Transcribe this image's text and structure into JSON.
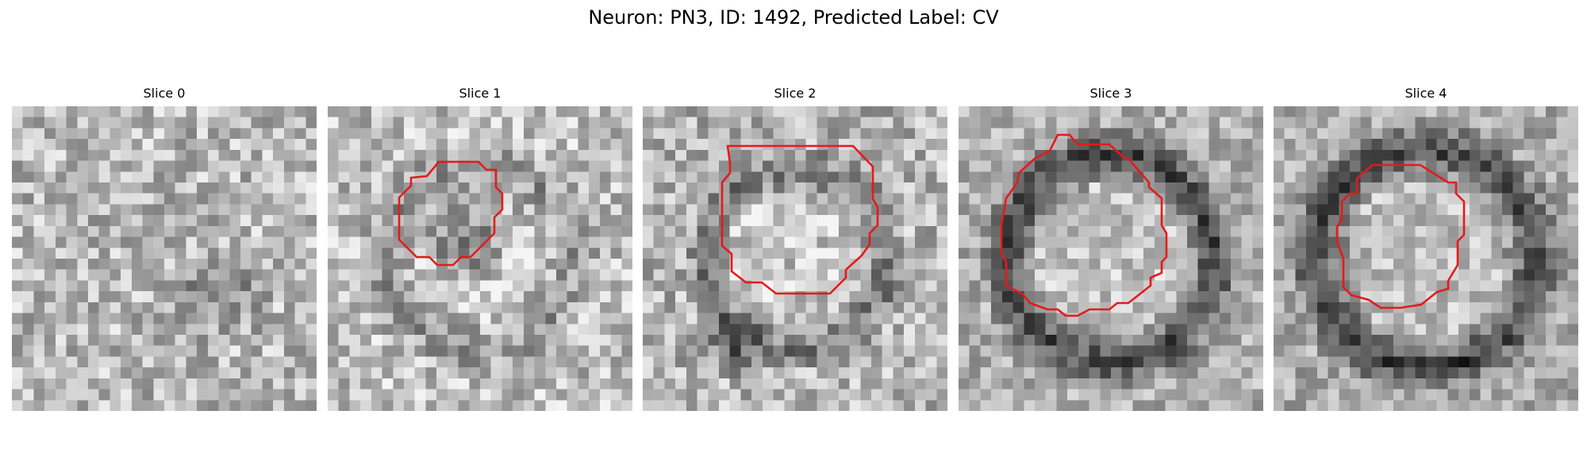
{
  "figure": {
    "title": "Neuron: PN3, ID: 1492, Predicted Label: CV"
  },
  "slices": [
    {
      "label": "Slice 0",
      "has_contour": false
    },
    {
      "label": "Slice 1",
      "has_contour": true
    },
    {
      "label": "Slice 2",
      "has_contour": true
    },
    {
      "label": "Slice 3",
      "has_contour": true
    },
    {
      "label": "Slice 4",
      "has_contour": true
    }
  ],
  "colors": {
    "contour": "#e41a1c",
    "background": "#ffffff"
  }
}
